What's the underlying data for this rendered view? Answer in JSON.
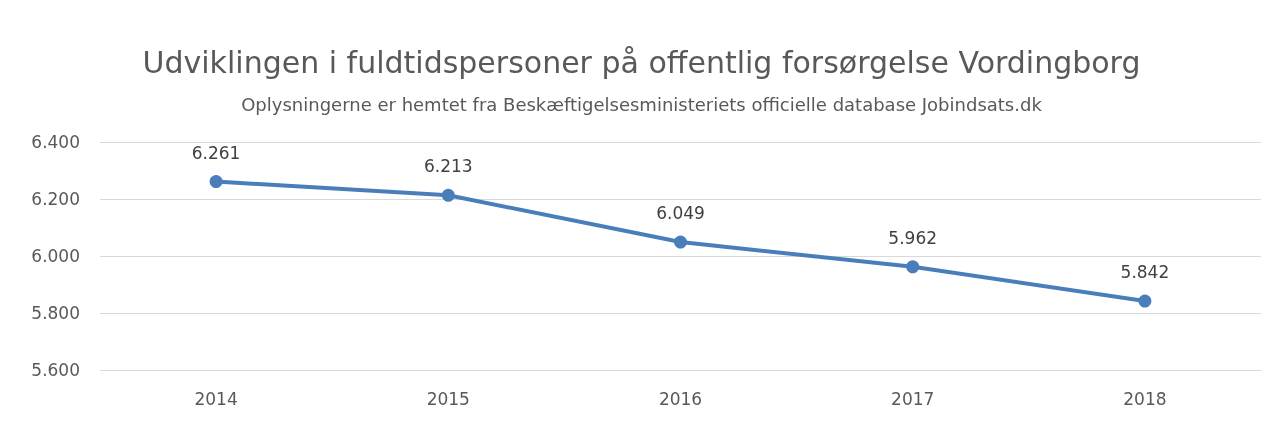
{
  "chart_data": {
    "type": "line",
    "title": "Udviklingen i fuldtidspersoner på offentlig forsørgelse Vordingborg",
    "subtitle": "Oplysningerne er hemtet fra Beskæftigelsesministeriets officielle database Jobindsats.dk",
    "categories": [
      "2014",
      "2015",
      "2016",
      "2017",
      "2018"
    ],
    "series": [
      {
        "color": "#4a7ebb",
        "values": [
          6261,
          6213,
          6049,
          5962,
          5842
        ],
        "value_labels": [
          "6.261",
          "6.213",
          "6.049",
          "5.962",
          "5.842"
        ]
      }
    ],
    "ylim": [
      5600,
      6400
    ],
    "yticks": [
      {
        "value": 5600,
        "label": "5.600"
      },
      {
        "value": 5800,
        "label": "5.800"
      },
      {
        "value": 6000,
        "label": "6.000"
      },
      {
        "value": 6200,
        "label": "6.200"
      },
      {
        "value": 6400,
        "label": "6.400"
      }
    ],
    "grid": "y",
    "marker": "circle",
    "line_style": "solid"
  }
}
